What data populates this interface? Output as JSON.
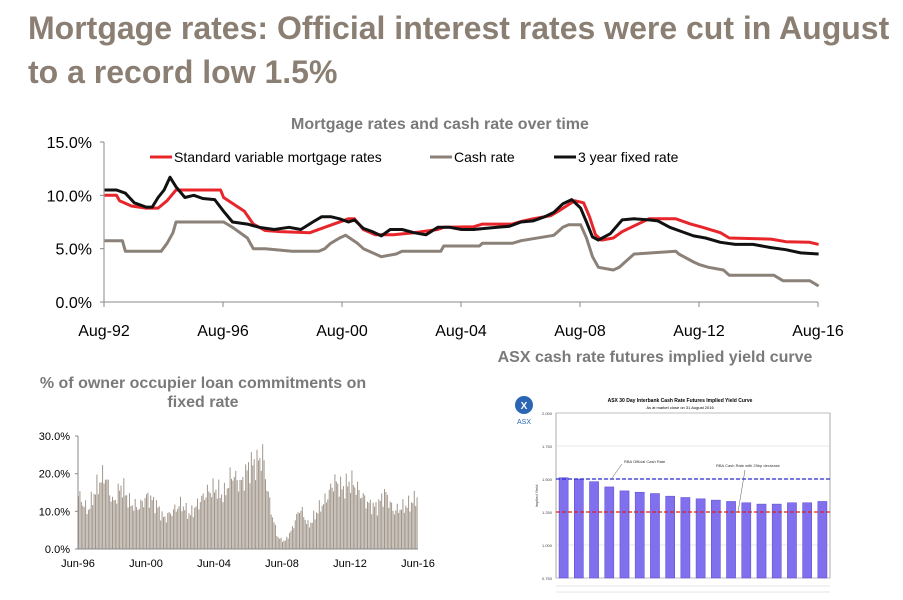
{
  "slide": {
    "title": "Mortgage rates: Official interest rates were cut in August to a record low 1.5%"
  },
  "chart_data": [
    {
      "type": "line",
      "title": "Mortgage rates and cash rate over time",
      "xlabel": "",
      "ylabel": "",
      "x_ticks": [
        "Aug-92",
        "Aug-96",
        "Aug-00",
        "Aug-04",
        "Aug-08",
        "Aug-12",
        "Aug-16"
      ],
      "y_ticks": [
        "0.0%",
        "5.0%",
        "10.0%",
        "15.0%"
      ],
      "xlim": [
        1992.58,
        2016.58
      ],
      "ylim": [
        0,
        15
      ],
      "legend_position": "top",
      "grid": false,
      "series": [
        {
          "name": "Standard variable mortgage rates",
          "color": "#e8252a",
          "x": [
            1992.6,
            1993.0,
            1993.1,
            1993.5,
            1994.0,
            1994.4,
            1994.7,
            1995.0,
            1996.5,
            1996.6,
            1997.3,
            1997.6,
            1998.0,
            1998.5,
            1999.5,
            2000.0,
            2000.8,
            2001.0,
            2001.3,
            2001.7,
            2002.3,
            2003.0,
            2003.8,
            2004.0,
            2005.0,
            2005.3,
            2006.3,
            2006.6,
            2007.0,
            2007.6,
            2007.9,
            2008.4,
            2008.7,
            2008.9,
            2009.1,
            2009.3,
            2009.7,
            2010.0,
            2010.9,
            2011.8,
            2012.3,
            2012.7,
            2013.3,
            2013.6,
            2015.0,
            2015.5,
            2016.3,
            2016.6
          ],
          "y": [
            10.0,
            10.0,
            9.5,
            9.0,
            8.8,
            8.8,
            9.5,
            10.5,
            10.5,
            9.8,
            8.5,
            7.3,
            6.7,
            6.6,
            6.5,
            7.0,
            7.8,
            7.8,
            6.8,
            6.3,
            6.3,
            6.5,
            6.8,
            7.0,
            7.05,
            7.3,
            7.3,
            7.55,
            7.8,
            8.1,
            8.6,
            9.5,
            9.3,
            8.0,
            6.3,
            5.8,
            6.0,
            6.6,
            7.8,
            7.8,
            7.3,
            7.0,
            6.5,
            6.0,
            5.9,
            5.65,
            5.6,
            5.4
          ]
        },
        {
          "name": "Cash rate",
          "color": "#8b8178",
          "x": [
            1992.6,
            1993.2,
            1993.3,
            1994.5,
            1994.7,
            1994.9,
            1995.0,
            1996.6,
            1996.9,
            1997.4,
            1997.6,
            1998.0,
            1998.9,
            1999.8,
            2000.0,
            2000.2,
            2000.5,
            2000.7,
            2001.1,
            2001.3,
            2001.7,
            2001.9,
            2002.4,
            2002.6,
            2003.9,
            2004.0,
            2005.2,
            2005.3,
            2006.3,
            2006.6,
            2007.7,
            2007.9,
            2008.0,
            2008.2,
            2008.6,
            2008.8,
            2009.0,
            2009.2,
            2009.7,
            2009.9,
            2010.2,
            2010.4,
            2011.8,
            2011.9,
            2012.4,
            2012.6,
            2012.9,
            2013.4,
            2013.6,
            2015.1,
            2015.4,
            2016.3,
            2016.6
          ],
          "y": [
            5.75,
            5.75,
            4.75,
            4.75,
            5.5,
            6.5,
            7.5,
            7.5,
            7.0,
            6.0,
            5.0,
            5.0,
            4.75,
            4.75,
            5.0,
            5.5,
            6.0,
            6.25,
            5.5,
            5.0,
            4.5,
            4.25,
            4.5,
            4.75,
            4.75,
            5.25,
            5.25,
            5.5,
            5.5,
            5.75,
            6.25,
            6.75,
            7.0,
            7.25,
            7.25,
            6.0,
            4.25,
            3.25,
            3.0,
            3.25,
            4.0,
            4.5,
            4.75,
            4.5,
            3.75,
            3.5,
            3.25,
            3.0,
            2.5,
            2.5,
            2.0,
            2.0,
            1.5
          ]
        },
        {
          "name": "3 year fixed rate",
          "color": "#111111",
          "x": [
            1992.6,
            1993.0,
            1993.3,
            1993.6,
            1994.0,
            1994.2,
            1994.4,
            1994.6,
            1994.8,
            1995.0,
            1995.3,
            1995.6,
            1995.9,
            1996.3,
            1996.6,
            1996.9,
            1997.4,
            1997.8,
            1998.3,
            1998.8,
            1999.2,
            1999.6,
            1999.9,
            2000.2,
            2000.5,
            2000.8,
            2001.0,
            2001.3,
            2001.6,
            2001.9,
            2002.2,
            2002.6,
            2003.0,
            2003.4,
            2003.8,
            2004.2,
            2004.6,
            2005.0,
            2005.4,
            2005.8,
            2006.2,
            2006.6,
            2007.0,
            2007.4,
            2007.7,
            2008.0,
            2008.3,
            2008.6,
            2008.8,
            2009.0,
            2009.2,
            2009.6,
            2010.0,
            2010.4,
            2010.9,
            2011.2,
            2011.6,
            2012.0,
            2012.4,
            2012.8,
            2013.3,
            2013.8,
            2014.4,
            2015.0,
            2015.5,
            2016.0,
            2016.6
          ],
          "y": [
            10.5,
            10.5,
            10.2,
            9.3,
            8.9,
            8.9,
            9.8,
            10.5,
            11.7,
            10.8,
            9.8,
            10.0,
            9.7,
            9.6,
            8.5,
            7.5,
            7.3,
            7.0,
            6.8,
            7.0,
            6.8,
            7.5,
            8.0,
            8.0,
            7.8,
            7.5,
            7.7,
            6.9,
            6.6,
            6.2,
            6.8,
            6.8,
            6.5,
            6.3,
            7.0,
            7.0,
            6.8,
            6.8,
            6.9,
            7.0,
            7.1,
            7.5,
            7.6,
            8.0,
            8.4,
            9.2,
            9.6,
            8.8,
            7.5,
            6.1,
            5.8,
            6.4,
            7.7,
            7.8,
            7.7,
            7.6,
            7.0,
            6.6,
            6.2,
            6.0,
            5.6,
            5.4,
            5.4,
            5.1,
            4.9,
            4.6,
            4.5
          ]
        }
      ]
    },
    {
      "type": "bar",
      "title": "% of owner occupier loan commitments on fixed rate",
      "xlabel": "",
      "ylabel": "",
      "x_ticks": [
        "Jun-96",
        "Jun-00",
        "Jun-04",
        "Jun-08",
        "Jun-12",
        "Jun-16"
      ],
      "y_ticks": [
        "0.0%",
        "10.0%",
        "20.0%",
        "30.0%"
      ],
      "xlim": [
        1996.42,
        2016.42
      ],
      "ylim": [
        0,
        30
      ],
      "color": "#a0968a",
      "anchor_x": [
        1996.5,
        1997.0,
        1997.5,
        1998.0,
        1998.5,
        1999.0,
        1999.5,
        2000.0,
        2000.5,
        2001.0,
        2001.5,
        2002.0,
        2002.5,
        2003.0,
        2003.5,
        2004.0,
        2004.5,
        2005.0,
        2005.5,
        2006.0,
        2006.5,
        2007.0,
        2007.3,
        2007.6,
        2007.9,
        2008.2,
        2008.6,
        2009.0,
        2009.5,
        2010.0,
        2010.5,
        2011.0,
        2011.5,
        2012.0,
        2012.5,
        2013.0,
        2013.5,
        2014.0,
        2014.5,
        2015.0,
        2015.5,
        2016.0,
        2016.4
      ],
      "anchor_y": [
        14,
        10,
        16,
        20,
        12,
        17,
        12,
        11,
        14,
        12,
        8,
        10,
        12,
        9,
        12,
        15,
        16,
        14,
        20,
        17,
        22,
        23,
        25,
        15,
        8,
        3,
        2,
        5,
        11,
        6,
        10,
        13,
        18,
        16,
        18,
        15,
        12,
        11,
        15,
        10,
        11,
        12,
        14
      ]
    },
    {
      "type": "bar",
      "title": "ASX cash rate futures implied yield curve",
      "panel_label": "ASX",
      "inner_title": "ASX 30 Day Interbank Cash Rate Futures Implied Yield Curve",
      "inner_subtitle": "As at market close on 31 August 2016",
      "ylabel": "Implied Yield",
      "y_ticks": [
        "0.750",
        "1.000",
        "1.250",
        "1.500",
        "1.750",
        "2.000"
      ],
      "ylim": [
        0.75,
        2.0
      ],
      "values": [
        1.51,
        1.5,
        1.48,
        1.44,
        1.41,
        1.4,
        1.39,
        1.37,
        1.36,
        1.35,
        1.34,
        1.33,
        1.32,
        1.31,
        1.31,
        1.32,
        1.32,
        1.33
      ],
      "reference_lines": [
        {
          "label": "RBA Official Cash Rate",
          "value": 1.5,
          "color": "#2a2acb"
        },
        {
          "label": "RBA Cash Rate with 25bp decrease",
          "value": 1.25,
          "color": "#d82020"
        }
      ],
      "bar_color": "#8070ee"
    }
  ]
}
